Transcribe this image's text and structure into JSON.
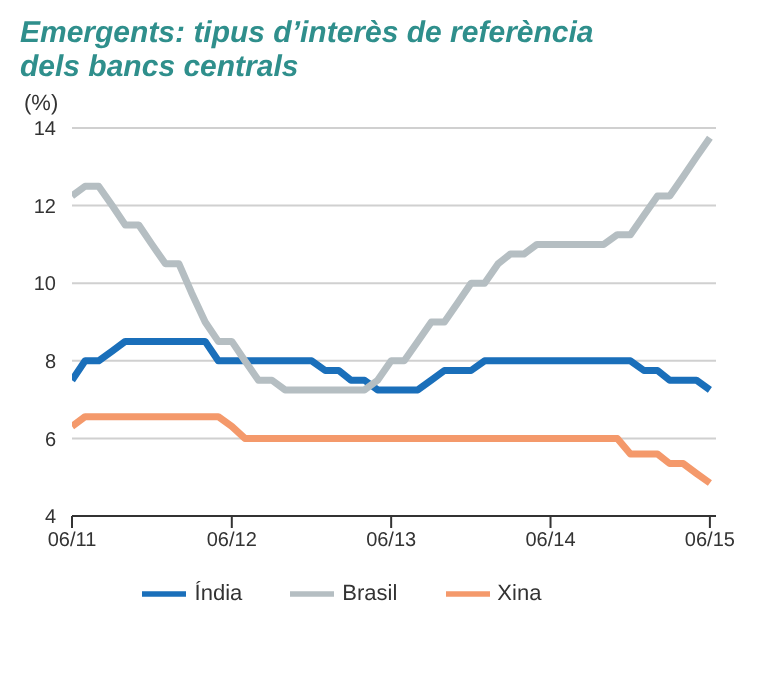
{
  "chart_data": {
    "type": "line",
    "title": "Emergents: tipus d’interès de referència dels bancs centrals",
    "ylabel": "(%)",
    "x": [
      "2011-06",
      "2011-07",
      "2011-08",
      "2011-09",
      "2011-10",
      "2011-11",
      "2011-12",
      "2012-01",
      "2012-02",
      "2012-03",
      "2012-04",
      "2012-05",
      "2012-06",
      "2012-07",
      "2012-08",
      "2012-09",
      "2012-10",
      "2012-11",
      "2012-12",
      "2013-01",
      "2013-02",
      "2013-03",
      "2013-04",
      "2013-05",
      "2013-06",
      "2013-07",
      "2013-08",
      "2013-09",
      "2013-10",
      "2013-11",
      "2013-12",
      "2014-01",
      "2014-02",
      "2014-03",
      "2014-04",
      "2014-05",
      "2014-06",
      "2014-07",
      "2014-08",
      "2014-09",
      "2014-10",
      "2014-11",
      "2014-12",
      "2015-01",
      "2015-02",
      "2015-03",
      "2015-04",
      "2015-05",
      "2015-06"
    ],
    "xlim": [
      "2011-06",
      "2015-06-15"
    ],
    "xticks": [
      {
        "value": "2011-06",
        "label": "06/11"
      },
      {
        "value": "2012-06",
        "label": "06/12"
      },
      {
        "value": "2013-06",
        "label": "06/13"
      },
      {
        "value": "2014-06",
        "label": "06/14"
      },
      {
        "value": "2015-06",
        "label": "06/15"
      }
    ],
    "ylim": [
      4,
      14
    ],
    "yticks": [
      4,
      6,
      8,
      10,
      12,
      14
    ],
    "grid": "y",
    "legend": "bottom",
    "marker": "none",
    "line_style": "solid",
    "series": [
      {
        "name": "Índia",
        "color": "#1a6fba",
        "values": [
          7.5,
          8,
          8,
          8.25,
          8.5,
          8.5,
          8.5,
          8.5,
          8.5,
          8.5,
          8.5,
          8,
          8,
          8,
          8,
          8,
          8,
          8,
          8,
          7.75,
          7.75,
          7.5,
          7.5,
          7.25,
          7.25,
          7.25,
          7.25,
          7.5,
          7.75,
          7.75,
          7.75,
          8,
          8,
          8,
          8,
          8,
          8,
          8,
          8,
          8,
          8,
          8,
          8,
          7.75,
          7.75,
          7.5,
          7.5,
          7.5,
          7.25
        ]
      },
      {
        "name": "Brasil",
        "color": "#b5bec2",
        "values": [
          12.25,
          12.5,
          12.5,
          12,
          11.5,
          11.5,
          11,
          10.5,
          10.5,
          9.75,
          9,
          8.5,
          8.5,
          8,
          7.5,
          7.5,
          7.25,
          7.25,
          7.25,
          7.25,
          7.25,
          7.25,
          7.25,
          7.5,
          8,
          8,
          8.5,
          9,
          9,
          9.5,
          10,
          10,
          10.5,
          10.75,
          10.75,
          11,
          11,
          11,
          11,
          11,
          11,
          11.25,
          11.25,
          11.75,
          12.25,
          12.25,
          12.75,
          13.25,
          13.75
        ]
      },
      {
        "name": "Xina",
        "color": "#f4996b",
        "values": [
          6.31,
          6.56,
          6.56,
          6.56,
          6.56,
          6.56,
          6.56,
          6.56,
          6.56,
          6.56,
          6.56,
          6.56,
          6.31,
          6,
          6,
          6,
          6,
          6,
          6,
          6,
          6,
          6,
          6,
          6,
          6,
          6,
          6,
          6,
          6,
          6,
          6,
          6,
          6,
          6,
          6,
          6,
          6,
          6,
          6,
          6,
          6,
          6,
          5.6,
          5.6,
          5.6,
          5.35,
          5.35,
          5.1,
          4.85
        ]
      }
    ]
  }
}
